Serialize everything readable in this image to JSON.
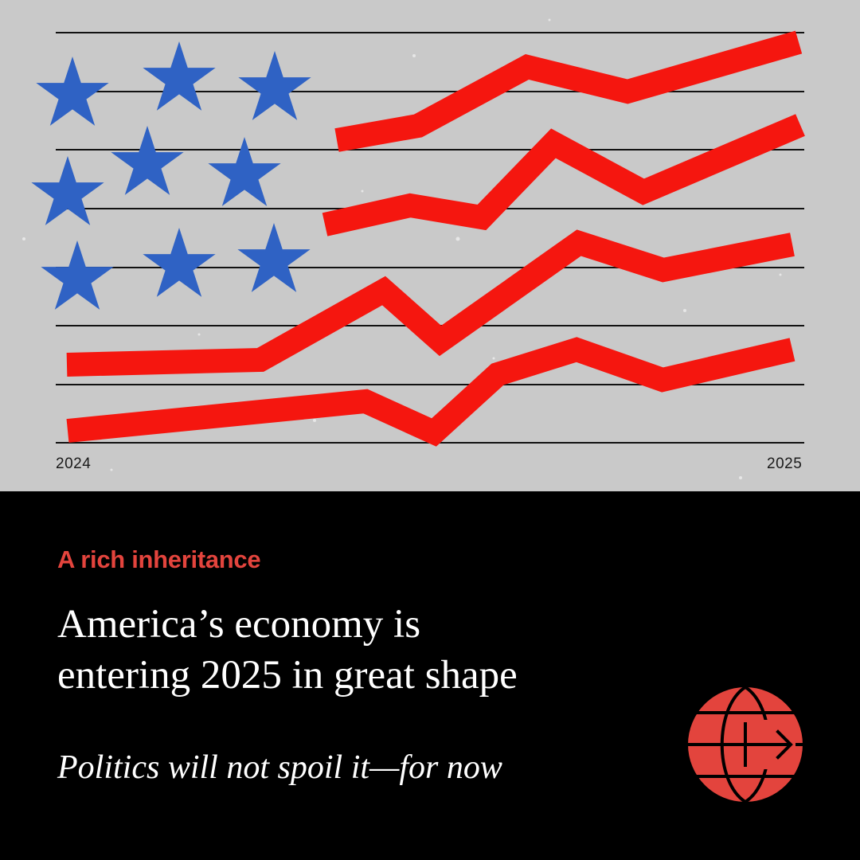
{
  "illustration": {
    "axis_start_label": "2024",
    "axis_end_label": "2025",
    "colors": {
      "background": "#c9c9c9",
      "stripe": "#f5160f",
      "star": "#2f62c4",
      "rule": "#111111"
    }
  },
  "article": {
    "rubric": "A rich inheritance",
    "headline_line1": "America’s economy is",
    "headline_line2": "entering 2025 in great shape",
    "subheadline": "Politics will not spoil it—for now"
  },
  "logo": {
    "icon": "globe-arrow-icon",
    "color": "#e3443d"
  }
}
